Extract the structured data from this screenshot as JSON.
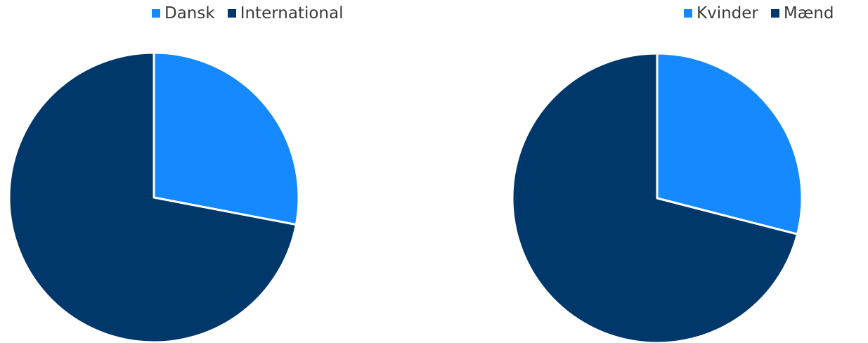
{
  "chart_data": [
    {
      "type": "pie",
      "title": "",
      "legend_position": "top",
      "categories": [
        "Dansk",
        "International"
      ],
      "values": [
        28,
        72
      ],
      "colors": [
        "#1589ff",
        "#00386b"
      ]
    },
    {
      "type": "pie",
      "title": "",
      "legend_position": "top",
      "categories": [
        "Kvinder",
        "Mænd"
      ],
      "values": [
        29,
        71
      ],
      "colors": [
        "#1589ff",
        "#00386b"
      ]
    }
  ]
}
